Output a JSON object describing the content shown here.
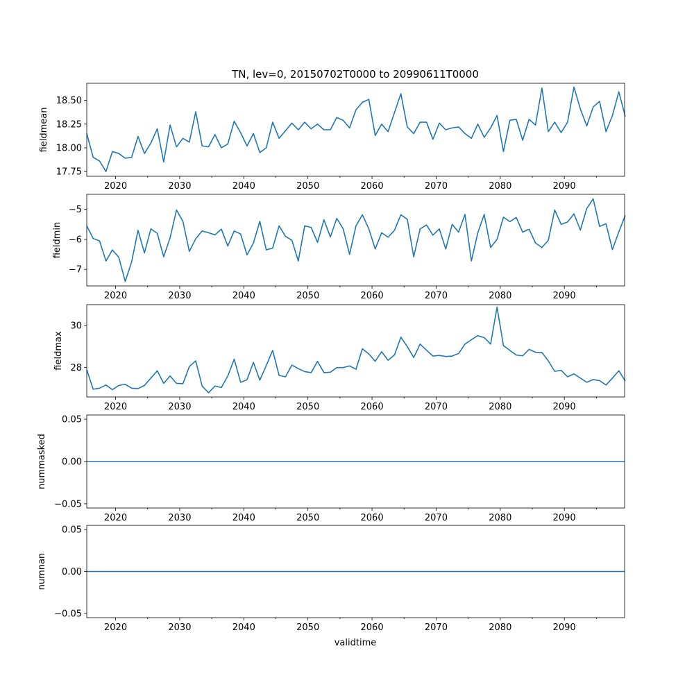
{
  "figure": {
    "title": "TN, lev=0, 20150702T0000 to 20990611T0000",
    "xlabel": "validtime"
  },
  "colors": {
    "line": "#1f77b4",
    "axis": "#000000",
    "background": "#ffffff"
  },
  "chart_data": [
    {
      "type": "line",
      "ylabel": "fieldmean",
      "x_range": [
        2015.5,
        2099.4
      ],
      "x_ticks": [
        2020,
        2030,
        2040,
        2050,
        2060,
        2070,
        2080,
        2090
      ],
      "x_ticklabels": [
        "2020",
        "2030",
        "2040",
        "2050",
        "2060",
        "2070",
        "2080",
        "2090"
      ],
      "ylim": [
        17.7,
        18.68
      ],
      "y_ticks": [
        17.75,
        18.0,
        18.25,
        18.5
      ],
      "y_ticklabels": [
        "17.75",
        "18.00",
        "18.25",
        "18.50"
      ],
      "x_start": 2015.5,
      "x_step": 1,
      "values": [
        18.15,
        17.9,
        17.86,
        17.75,
        17.96,
        17.94,
        17.89,
        17.9,
        18.12,
        17.94,
        18.05,
        18.2,
        17.85,
        18.24,
        18.01,
        18.1,
        18.06,
        18.38,
        18.02,
        18.01,
        18.14,
        18.0,
        18.04,
        18.28,
        18.16,
        18.02,
        18.15,
        17.95,
        18.0,
        18.27,
        18.1,
        18.18,
        18.26,
        18.19,
        18.27,
        18.2,
        18.25,
        18.19,
        18.19,
        18.32,
        18.29,
        18.21,
        18.4,
        18.48,
        18.51,
        18.13,
        18.25,
        18.17,
        18.37,
        18.57,
        18.22,
        18.15,
        18.27,
        18.27,
        18.09,
        18.26,
        18.19,
        18.21,
        18.22,
        18.15,
        18.1,
        18.25,
        18.11,
        18.21,
        18.34,
        17.96,
        18.29,
        18.3,
        18.08,
        18.3,
        18.24,
        18.63,
        18.17,
        18.27,
        18.16,
        18.27,
        18.64,
        18.41,
        18.23,
        18.43,
        18.49,
        18.17,
        18.34,
        18.59,
        18.33
      ]
    },
    {
      "type": "line",
      "ylabel": "fieldmin",
      "x_range": [
        2015.5,
        2099.4
      ],
      "x_ticks": [
        2020,
        2030,
        2040,
        2050,
        2060,
        2070,
        2080,
        2090
      ],
      "x_ticklabels": [
        "2020",
        "2030",
        "2040",
        "2050",
        "2060",
        "2070",
        "2080",
        "2090"
      ],
      "ylim": [
        -7.55,
        -4.5
      ],
      "y_ticks": [
        -7,
        -6,
        -5
      ],
      "y_ticklabels": [
        "−7",
        "−6",
        "−5"
      ],
      "x_start": 2015.5,
      "x_step": 1,
      "values": [
        -5.55,
        -5.97,
        -6.05,
        -6.72,
        -6.35,
        -6.6,
        -7.4,
        -6.75,
        -5.7,
        -6.45,
        -5.65,
        -5.8,
        -6.58,
        -5.95,
        -5.02,
        -5.4,
        -6.4,
        -5.98,
        -5.72,
        -5.78,
        -5.85,
        -5.66,
        -6.22,
        -5.72,
        -5.82,
        -6.52,
        -6.12,
        -5.4,
        -6.35,
        -6.29,
        -5.55,
        -5.9,
        -6.03,
        -6.72,
        -5.55,
        -5.6,
        -6.1,
        -5.35,
        -5.92,
        -5.3,
        -5.65,
        -6.5,
        -5.55,
        -5.18,
        -5.65,
        -6.32,
        -5.78,
        -5.93,
        -5.7,
        -5.18,
        -5.33,
        -6.58,
        -5.65,
        -5.52,
        -5.86,
        -5.65,
        -6.32,
        -5.5,
        -5.76,
        -5.17,
        -6.72,
        -5.78,
        -5.17,
        -6.27,
        -6.0,
        -5.26,
        -5.41,
        -5.27,
        -5.76,
        -5.66,
        -6.12,
        -6.27,
        -6.03,
        -5.02,
        -5.5,
        -5.42,
        -5.15,
        -5.69,
        -4.97,
        -4.65,
        -5.57,
        -5.48,
        -6.34,
        -5.75,
        -5.2
      ]
    },
    {
      "type": "line",
      "ylabel": "fieldmax",
      "x_range": [
        2015.5,
        2099.4
      ],
      "x_ticks": [
        2020,
        2030,
        2040,
        2050,
        2060,
        2070,
        2080,
        2090
      ],
      "x_ticklabels": [
        "2020",
        "2030",
        "2040",
        "2050",
        "2060",
        "2070",
        "2080",
        "2090"
      ],
      "ylim": [
        26.6,
        31.0
      ],
      "y_ticks": [
        28,
        30
      ],
      "y_ticklabels": [
        "28",
        "30"
      ],
      "x_start": 2015.5,
      "x_step": 1,
      "values": [
        27.9,
        26.97,
        27.02,
        27.17,
        26.95,
        27.15,
        27.2,
        27.02,
        27.0,
        27.15,
        27.5,
        27.85,
        27.25,
        27.6,
        27.25,
        27.23,
        28.05,
        28.32,
        27.12,
        26.8,
        27.12,
        27.05,
        27.6,
        28.4,
        27.3,
        27.42,
        28.25,
        27.4,
        28.1,
        28.82,
        27.63,
        27.56,
        28.12,
        27.95,
        27.81,
        27.76,
        28.3,
        27.76,
        27.78,
        28.0,
        28.0,
        28.08,
        27.92,
        28.9,
        28.65,
        28.3,
        28.76,
        28.35,
        28.6,
        29.45,
        29.0,
        28.48,
        29.12,
        28.83,
        28.55,
        28.58,
        28.53,
        28.55,
        28.67,
        29.12,
        29.33,
        29.52,
        29.43,
        29.12,
        30.88,
        29.05,
        28.82,
        28.6,
        28.56,
        28.87,
        28.73,
        28.72,
        28.32,
        27.82,
        27.87,
        27.56,
        27.7,
        27.5,
        27.3,
        27.43,
        27.38,
        27.17,
        27.5,
        27.85,
        27.36
      ]
    },
    {
      "type": "line",
      "ylabel": "nummasked",
      "x_range": [
        2015.5,
        2099.4
      ],
      "x_ticks": [
        2020,
        2030,
        2040,
        2050,
        2060,
        2070,
        2080,
        2090
      ],
      "x_ticklabels": [
        "2020",
        "2030",
        "2040",
        "2050",
        "2060",
        "2070",
        "2080",
        "2090"
      ],
      "ylim": [
        -0.055,
        0.055
      ],
      "y_ticks": [
        -0.05,
        0.0,
        0.05
      ],
      "y_ticklabels": [
        "−0.05",
        "0.00",
        "0.05"
      ],
      "x_start": 2015.5,
      "x_step": 83.9,
      "values": [
        0,
        0
      ]
    },
    {
      "type": "line",
      "ylabel": "numnan",
      "x_range": [
        2015.5,
        2099.4
      ],
      "x_ticks": [
        2020,
        2030,
        2040,
        2050,
        2060,
        2070,
        2080,
        2090
      ],
      "x_ticklabels": [
        "2020",
        "2030",
        "2040",
        "2050",
        "2060",
        "2070",
        "2080",
        "2090"
      ],
      "ylim": [
        -0.055,
        0.055
      ],
      "y_ticks": [
        -0.05,
        0.0,
        0.05
      ],
      "y_ticklabels": [
        "−0.05",
        "0.00",
        "0.05"
      ],
      "x_start": 2015.5,
      "x_step": 83.9,
      "values": [
        0,
        0
      ]
    }
  ]
}
